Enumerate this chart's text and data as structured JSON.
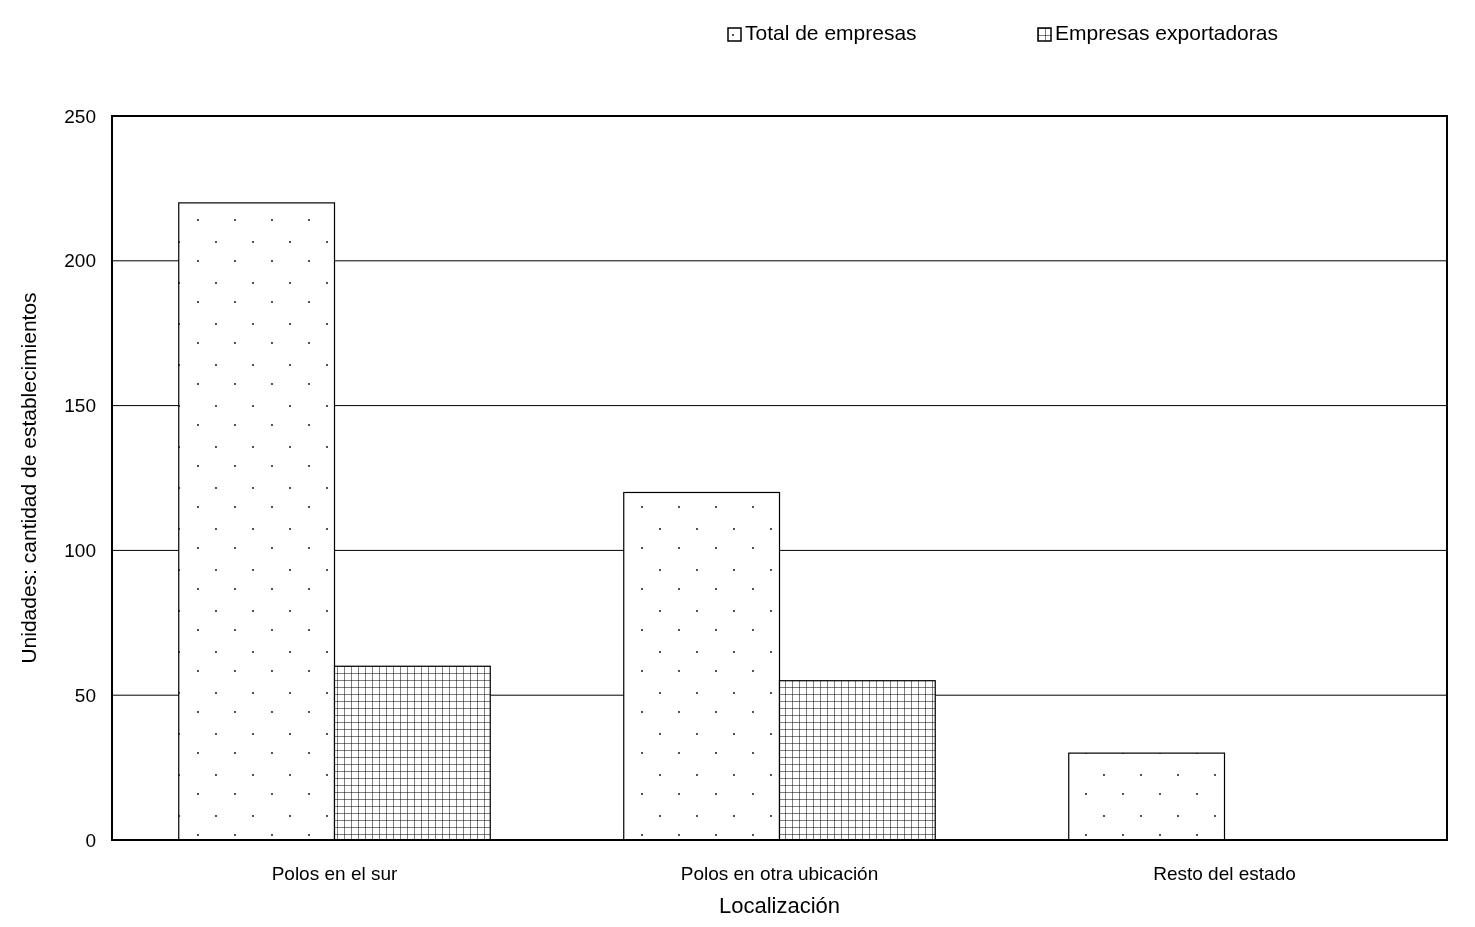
{
  "chart_data": {
    "type": "bar",
    "categories": [
      "Polos en el sur",
      "Polos en otra ubicación",
      "Resto del estado"
    ],
    "series": [
      {
        "name": "Total de empresas",
        "color": "#ffffff",
        "values": [
          220,
          120,
          30
        ]
      },
      {
        "name": "Empresas exportadoras",
        "color": "#ffffff",
        "values": [
          60,
          55,
          null
        ]
      }
    ],
    "xlabel": "Localización",
    "ylabel": "Unidades: cantidad de establecimientos",
    "ylim": [
      0,
      250
    ],
    "yticks": [
      0,
      50,
      100,
      150,
      200,
      250
    ],
    "grid": "y",
    "legend": "top"
  }
}
